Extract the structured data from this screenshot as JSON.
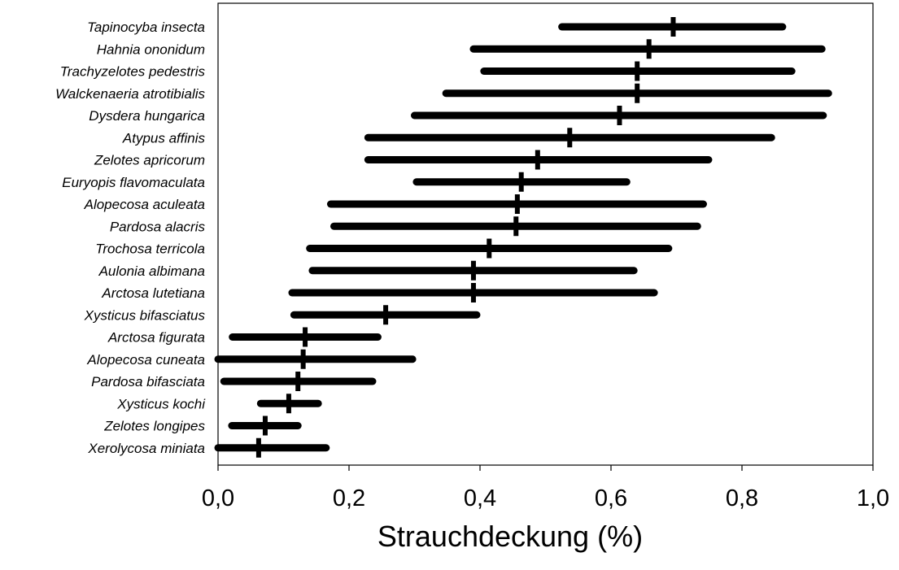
{
  "chart_data": {
    "type": "range",
    "title": "",
    "xlabel": "Strauchdeckung (%)",
    "ylabel": "",
    "xlim": [
      0.0,
      1.0
    ],
    "x_ticks": [
      "0,0",
      "0,2",
      "0,4",
      "0,6",
      "0,8",
      "1,0"
    ],
    "x_tick_values": [
      0.0,
      0.2,
      0.4,
      0.6,
      0.8,
      1.0
    ],
    "grid": false,
    "legend": "none",
    "bar_color": "#000000",
    "species": [
      {
        "name": "Tapinocyba insecta",
        "min": 0.525,
        "median": 0.695,
        "max": 0.862
      },
      {
        "name": "Hahnia ononidum",
        "min": 0.39,
        "median": 0.658,
        "max": 0.922
      },
      {
        "name": "Trachyzelotes pedestris",
        "min": 0.406,
        "median": 0.64,
        "max": 0.876
      },
      {
        "name": "Walckenaeria atrotibialis",
        "min": 0.348,
        "median": 0.64,
        "max": 0.932
      },
      {
        "name": "Dysdera hungarica",
        "min": 0.3,
        "median": 0.613,
        "max": 0.924
      },
      {
        "name": "Atypus affinis",
        "min": 0.229,
        "median": 0.537,
        "max": 0.845
      },
      {
        "name": "Zelotes apricorum",
        "min": 0.229,
        "median": 0.488,
        "max": 0.749
      },
      {
        "name": "Euryopis flavomaculata",
        "min": 0.303,
        "median": 0.463,
        "max": 0.624
      },
      {
        "name": "Alopecosa aculeata",
        "min": 0.172,
        "median": 0.457,
        "max": 0.741
      },
      {
        "name": "Pardosa alacris",
        "min": 0.177,
        "median": 0.455,
        "max": 0.732
      },
      {
        "name": "Trochosa terricola",
        "min": 0.14,
        "median": 0.414,
        "max": 0.688
      },
      {
        "name": "Aulonia albimana",
        "min": 0.144,
        "median": 0.39,
        "max": 0.635
      },
      {
        "name": "Arctosa lutetiana",
        "min": 0.113,
        "median": 0.39,
        "max": 0.666
      },
      {
        "name": "Xysticus bifasciatus",
        "min": 0.116,
        "median": 0.256,
        "max": 0.395
      },
      {
        "name": "Arctosa figurata",
        "min": 0.022,
        "median": 0.133,
        "max": 0.244
      },
      {
        "name": "Alopecosa cuneata",
        "min": 0.0,
        "median": 0.13,
        "max": 0.297
      },
      {
        "name": "Pardosa bifasciata",
        "min": 0.009,
        "median": 0.122,
        "max": 0.236
      },
      {
        "name": "Xysticus kochi",
        "min": 0.065,
        "median": 0.108,
        "max": 0.153
      },
      {
        "name": "Zelotes longipes",
        "min": 0.021,
        "median": 0.072,
        "max": 0.122
      },
      {
        "name": "Xerolycosa miniata",
        "min": 0.0,
        "median": 0.062,
        "max": 0.165
      }
    ]
  }
}
